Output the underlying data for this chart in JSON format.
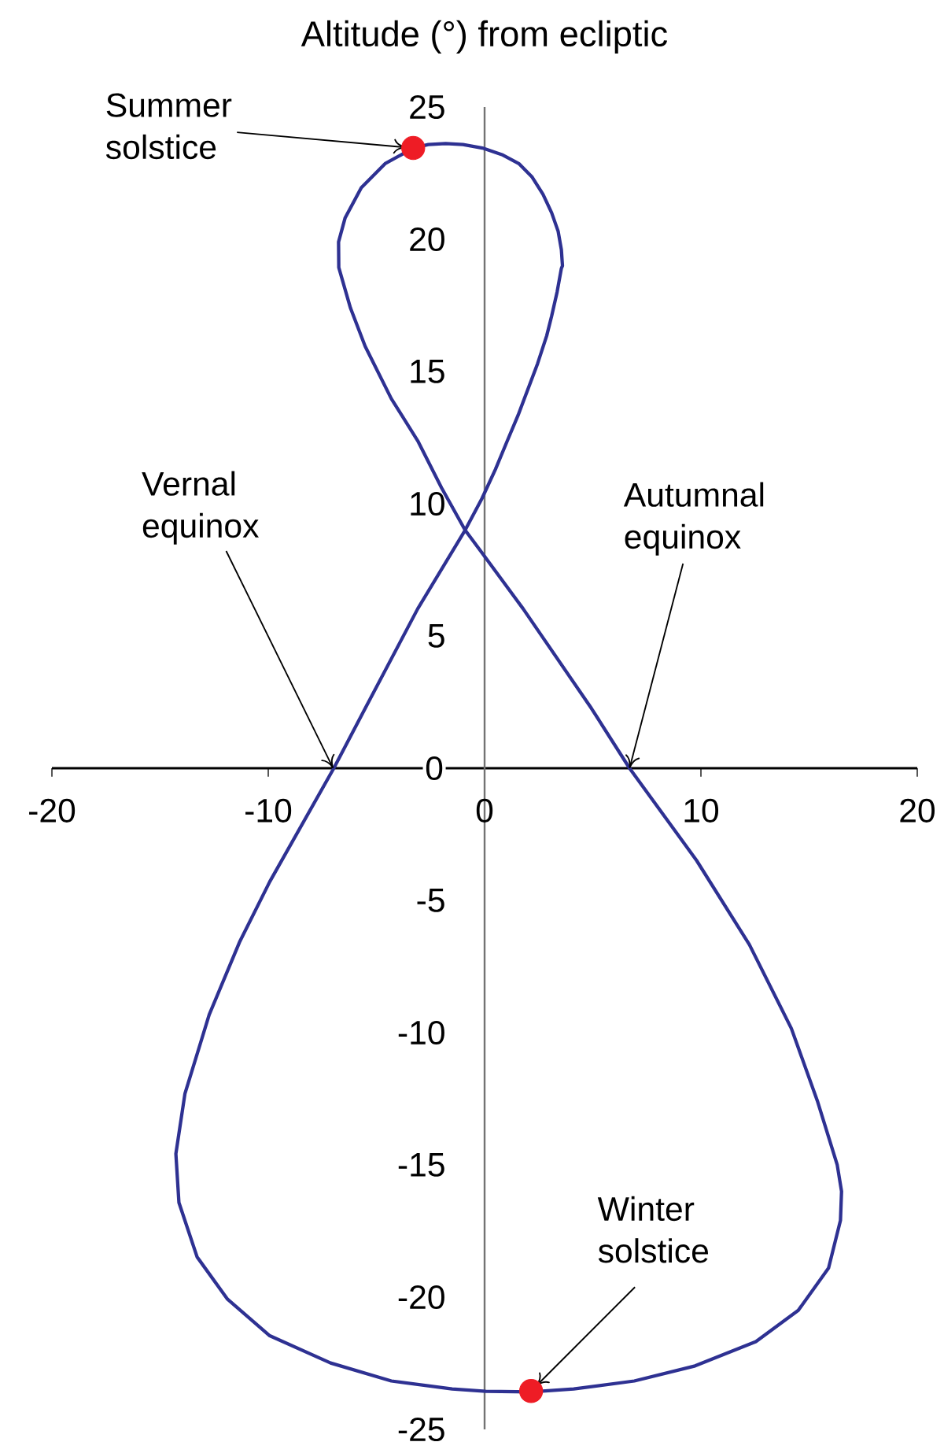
{
  "chart_data": {
    "type": "line",
    "ylabel": "Altitude (°) from ecliptic",
    "xlim": [
      -20,
      20
    ],
    "ylim": [
      -25,
      25
    ],
    "xticks": [
      -20,
      -10,
      0,
      10,
      20
    ],
    "yticks": [
      -25,
      -20,
      -15,
      -10,
      -5,
      0,
      5,
      10,
      15,
      20,
      25
    ],
    "series": [
      {
        "color": "#2e3192",
        "x": [
          -3.3,
          -2.6,
          -1.8,
          -1.0,
          -0.1,
          0.8,
          1.6,
          2.2,
          2.7,
          3.1,
          3.4,
          3.55,
          3.6,
          3.55,
          3.35,
          3.1,
          2.87,
          2.45,
          2.02,
          1.55,
          1.05,
          0.5,
          -0.12,
          -0.9,
          -3.09,
          -5.52,
          -6.97,
          -9.93,
          -11.33,
          -12.73,
          -13.85,
          -14.27,
          -14.13,
          -13.29,
          -11.88,
          -9.93,
          -7.12,
          -4.31,
          -1.5,
          0.05,
          2.15,
          4.12,
          6.92,
          9.73,
          12.54,
          14.5,
          15.9,
          16.45,
          16.5,
          16.3,
          15.4,
          14.18,
          12.24,
          9.8,
          6.7,
          4.94,
          1.78,
          -0.17,
          -0.9,
          -1.99,
          -3.09,
          -4.31,
          -5.52,
          -6.2,
          -6.74,
          -6.75,
          -6.45,
          -5.7,
          -4.6,
          -3.6
        ],
        "values": [
          23.45,
          23.58,
          23.62,
          23.58,
          23.45,
          23.2,
          22.85,
          22.35,
          21.7,
          21.0,
          20.3,
          19.6,
          19.0,
          18.9,
          18.0,
          17.1,
          16.35,
          15.3,
          14.37,
          13.35,
          12.38,
          11.3,
          10.2,
          9.0,
          6.03,
          2.26,
          0.0,
          -4.29,
          -6.58,
          -9.32,
          -12.3,
          -14.58,
          -16.42,
          -18.48,
          -20.08,
          -21.46,
          -22.49,
          -23.17,
          -23.47,
          -23.56,
          -23.58,
          -23.47,
          -23.17,
          -22.6,
          -21.68,
          -20.5,
          -18.9,
          -17.1,
          -16.0,
          -15.0,
          -12.62,
          -9.84,
          -6.67,
          -3.49,
          0.0,
          2.26,
          6.03,
          8.2,
          9.0,
          10.6,
          12.38,
          13.97,
          15.95,
          17.4,
          18.93,
          19.9,
          20.8,
          21.95,
          22.86,
          23.31
        ]
      },
      {
        "type": "scatter",
        "marker": "circle",
        "color": "#ee1c25",
        "x": [
          -3.3,
          2.15
        ],
        "values": [
          23.45,
          -23.55
        ]
      }
    ],
    "annotations": [
      {
        "text": "Summer solstice",
        "x": -3.3,
        "y": 23.45
      },
      {
        "text": "Vernal equinox",
        "x": -7,
        "y": 0
      },
      {
        "text": "Autumnal equinox",
        "x": 6.7,
        "y": 0
      },
      {
        "text": "Winter solstice",
        "x": 2.15,
        "y": -23.55
      }
    ]
  }
}
